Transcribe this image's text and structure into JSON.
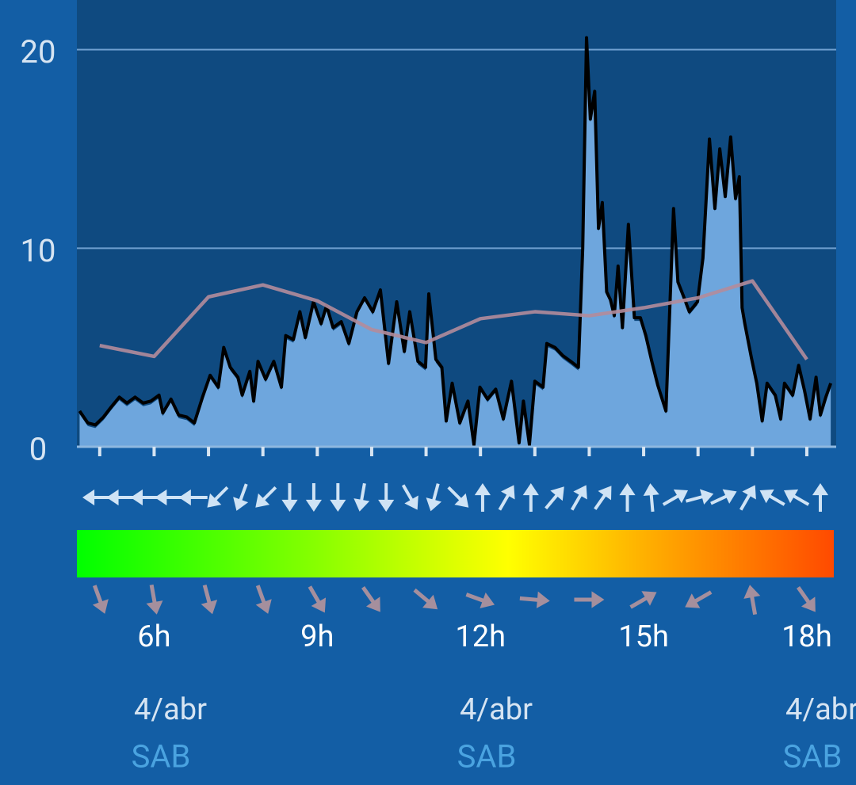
{
  "chart_data": {
    "type": "line",
    "xlim": [
      4.58,
      18.54
    ],
    "ylim": [
      0,
      22.5
    ],
    "yticks": [
      0,
      10,
      20
    ],
    "grid": true,
    "xticks": [
      {
        "value": 6,
        "label": "6h"
      },
      {
        "value": 9,
        "label": "9h"
      },
      {
        "value": 12,
        "label": "12h"
      },
      {
        "value": 15,
        "label": "15h"
      },
      {
        "value": 18,
        "label": "18h"
      }
    ],
    "x_minor_ticks": [
      5,
      7,
      8,
      10,
      11,
      13,
      14,
      16,
      17
    ],
    "series": [
      {
        "color": "#000000",
        "fill": "#6ea6dd",
        "x": [
          4.63,
          4.78,
          4.92,
          5.07,
          5.21,
          5.36,
          5.5,
          5.65,
          5.8,
          5.94,
          6.09,
          6.16,
          6.31,
          6.45,
          6.6,
          6.74,
          6.89,
          7.03,
          7.18,
          7.28,
          7.4,
          7.54,
          7.62,
          7.76,
          7.83,
          7.91,
          8.05,
          8.2,
          8.34,
          8.42,
          8.56,
          8.68,
          8.78,
          8.93,
          9.07,
          9.17,
          9.29,
          9.44,
          9.58,
          9.73,
          9.87,
          10.02,
          10.16,
          10.31,
          10.46,
          10.6,
          10.7,
          10.85,
          10.99,
          11.05,
          11.18,
          11.29,
          11.37,
          11.48,
          11.62,
          11.77,
          11.88,
          11.99,
          12.13,
          12.28,
          12.42,
          12.57,
          12.71,
          12.79,
          12.9,
          13.0,
          13.15,
          13.22,
          13.37,
          13.51,
          13.66,
          13.8,
          13.88,
          13.95,
          14.02,
          14.1,
          14.17,
          14.24,
          14.32,
          14.39,
          14.46,
          14.53,
          14.61,
          14.72,
          14.83,
          14.94,
          15.04,
          15.15,
          15.26,
          15.41,
          15.55,
          15.63,
          15.73,
          15.84,
          15.99,
          16.09,
          16.21,
          16.31,
          16.4,
          16.5,
          16.6,
          16.69,
          16.76,
          16.81,
          16.86,
          16.98,
          17.08,
          17.18,
          17.27,
          17.42,
          17.52,
          17.59,
          17.74,
          17.85,
          17.96,
          18.06,
          18.17,
          18.25,
          18.35,
          18.44
        ],
        "values": [
          1.8,
          1.2,
          1.1,
          1.5,
          2.0,
          2.5,
          2.2,
          2.5,
          2.2,
          2.3,
          2.6,
          1.7,
          2.4,
          1.6,
          1.5,
          1.2,
          2.5,
          3.6,
          3.0,
          5.0,
          4.0,
          3.5,
          2.6,
          3.8,
          2.3,
          4.3,
          3.4,
          4.3,
          3.0,
          5.6,
          5.4,
          6.8,
          5.5,
          7.3,
          6.2,
          7.1,
          6.0,
          6.3,
          5.2,
          6.8,
          7.5,
          6.8,
          7.9,
          4.2,
          7.3,
          4.8,
          6.8,
          4.3,
          4.0,
          7.7,
          4.4,
          4.0,
          1.3,
          3.2,
          1.2,
          2.3,
          0.1,
          3.0,
          2.4,
          2.9,
          1.4,
          3.3,
          0.2,
          2.3,
          0.1,
          3.3,
          3.0,
          5.2,
          5.0,
          4.6,
          4.3,
          4.0,
          10.0,
          20.6,
          16.5,
          17.9,
          11.0,
          12.3,
          7.8,
          7.4,
          6.6,
          9.1,
          6.0,
          11.2,
          6.5,
          6.5,
          5.6,
          4.3,
          3.1,
          1.8,
          12.0,
          8.3,
          7.6,
          6.8,
          7.3,
          9.5,
          15.5,
          12.0,
          15.0,
          12.6,
          15.6,
          12.5,
          13.6,
          7.0,
          6.2,
          4.5,
          3.2,
          1.3,
          3.2,
          2.6,
          1.4,
          3.2,
          2.6,
          4.1,
          2.8,
          1.4,
          3.5,
          1.6,
          2.5,
          3.2
        ]
      },
      {
        "color": "#b28c9b",
        "x": [
          5,
          6,
          7,
          8,
          9,
          10,
          11,
          12,
          13,
          14,
          15,
          16,
          17,
          18
        ],
        "values": [
          5.1,
          4.55,
          7.55,
          8.15,
          7.35,
          5.9,
          5.25,
          6.45,
          6.8,
          6.6,
          7.0,
          7.5,
          8.35,
          4.4
        ]
      }
    ],
    "direction_arrows": [
      270,
      270,
      270,
      270,
      270,
      225,
      200,
      225,
      180,
      180,
      180,
      190,
      180,
      150,
      195,
      135,
      0,
      30,
      0,
      40,
      30,
      35,
      0,
      355,
      60,
      75,
      65,
      30,
      300,
      300,
      0
    ],
    "gust_direction_arrows": [
      160,
      170,
      165,
      160,
      150,
      145,
      130,
      110,
      95,
      90,
      60,
      240,
      350,
      145
    ],
    "date_labels": [
      {
        "date": "4/abr",
        "day": "SAB"
      },
      {
        "date": "4/abr",
        "day": "SAB"
      },
      {
        "date": "4/abr",
        "day": "SAB"
      }
    ]
  }
}
